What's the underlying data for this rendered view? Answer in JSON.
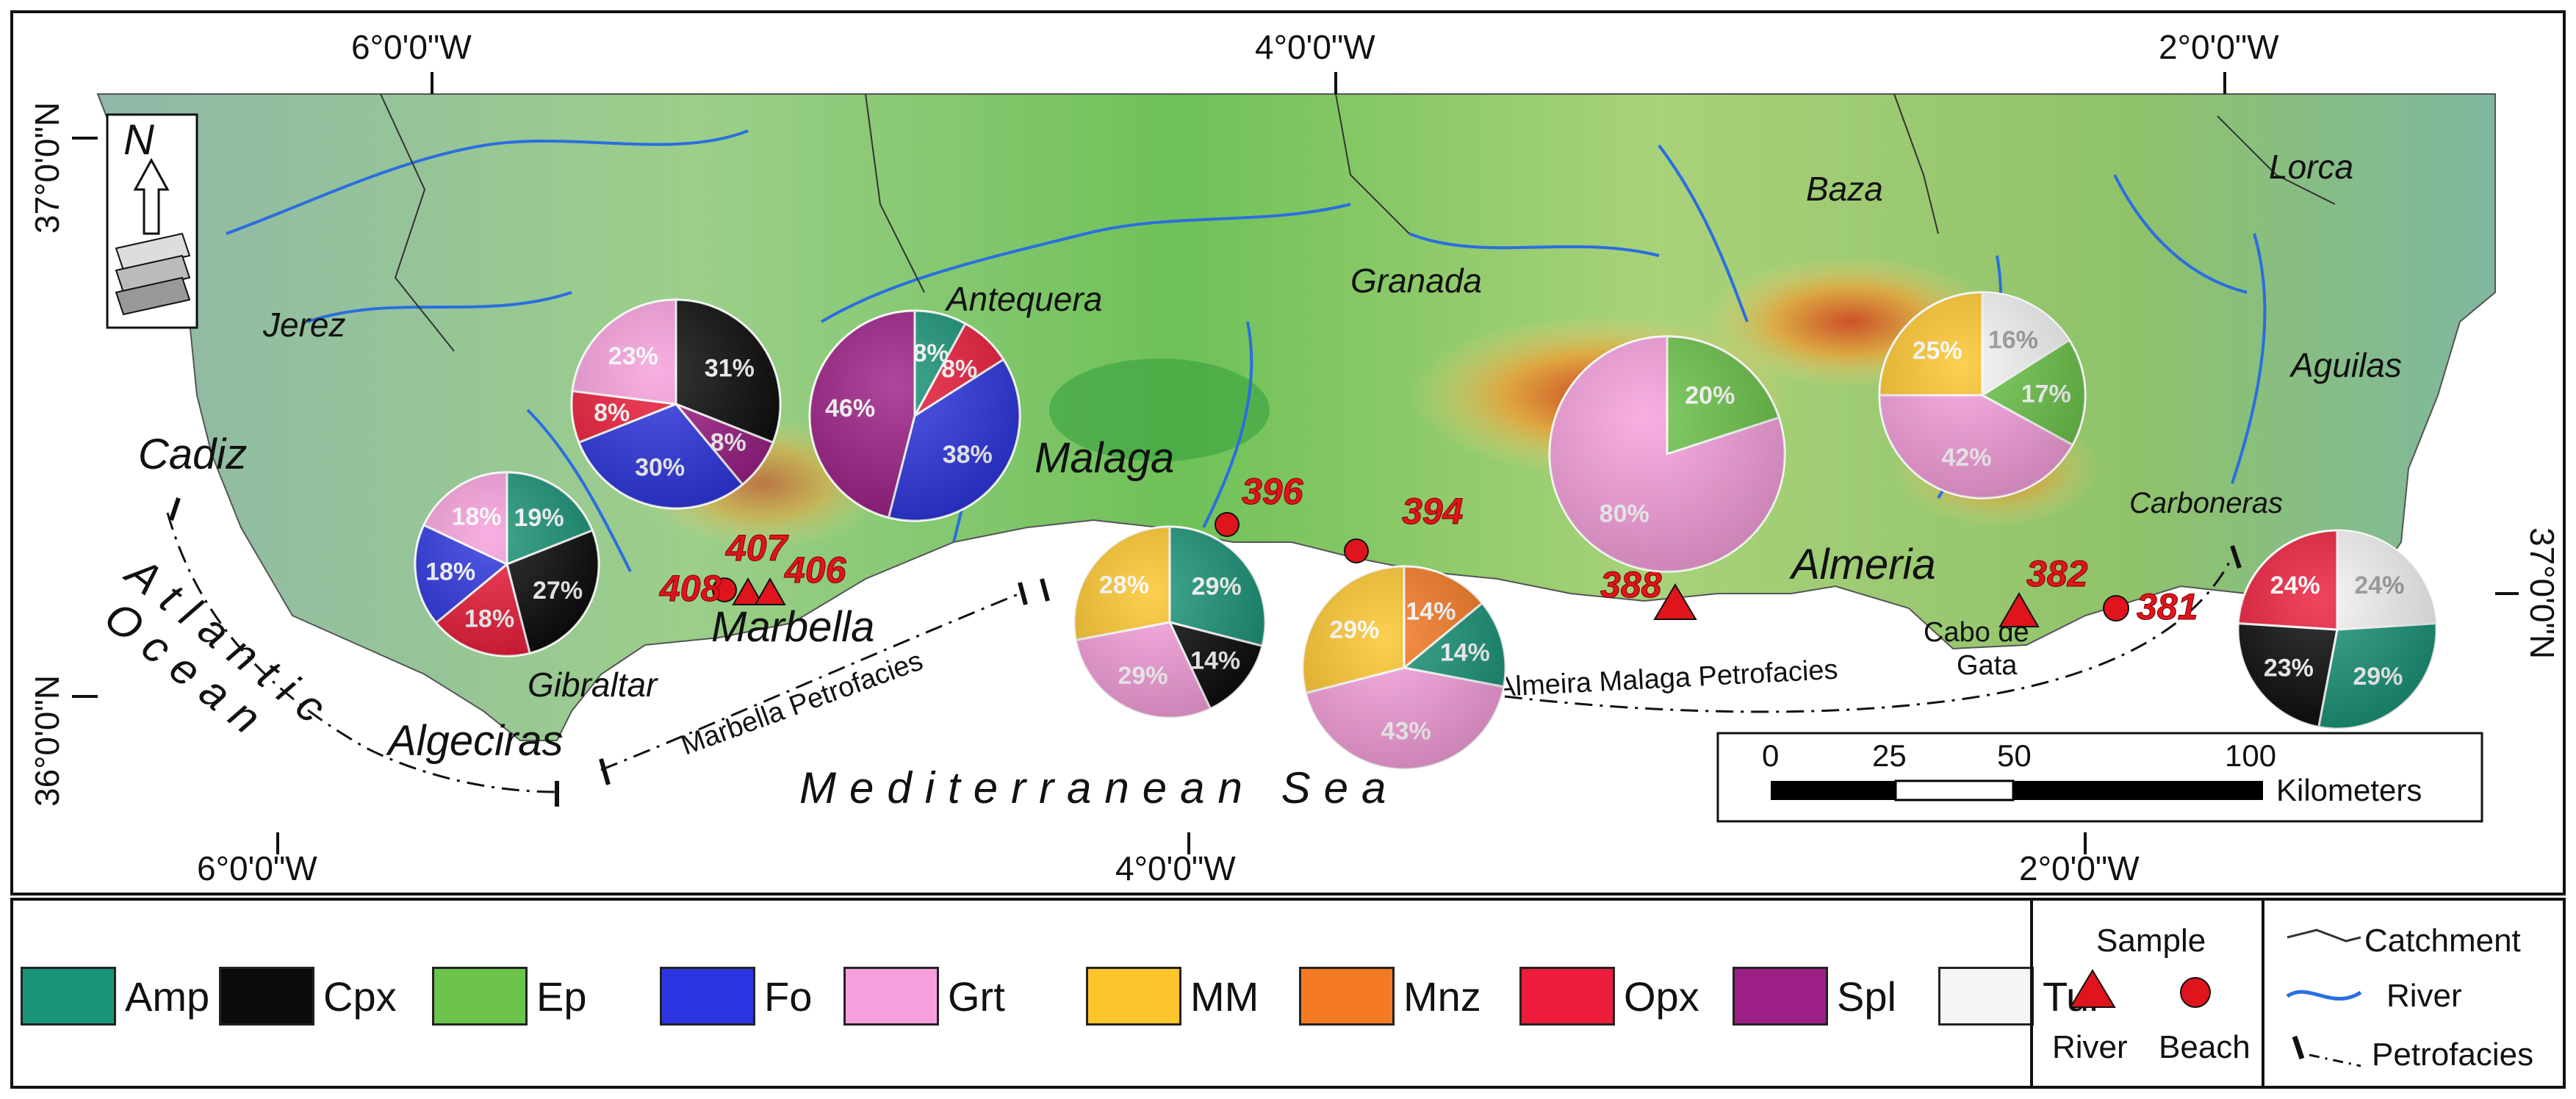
{
  "map": {
    "graticule": {
      "top_lon": [
        "6°0'0\"W",
        "4°0'0\"W",
        "2°0'0\"W"
      ],
      "bottom_lon": [
        "6°0'0\"W",
        "4°0'0\"W",
        "2°0'0\"W"
      ],
      "left_lat": [
        "37°0'0\"N",
        "36°0'0\"N"
      ],
      "right_lat": [
        "37°0'0\"N"
      ]
    },
    "places": {
      "jerez": "Jerez",
      "cadiz": "Cadiz",
      "gibraltar": "Gibraltar",
      "algeciras": "Algeciras",
      "marbella": "Marbella",
      "antequera": "Antequera",
      "malaga": "Malaga",
      "granada": "Granada",
      "baza": "Baza",
      "lorca": "Lorca",
      "aguilas": "Aguilas",
      "carboneras": "Carboneras",
      "almeria": "Almeria",
      "cabo_line1": "Cabo de",
      "cabo_line2": "Gata"
    },
    "water": {
      "atlantic": "Atlantic",
      "ocean": "Ocean",
      "mediterranean": "Mediterranean Sea"
    },
    "petrofacies": {
      "marbella": "Marbella Petrofacies",
      "almeria_malaga": "Almeira Malaga Petrofacies"
    },
    "samples": [
      {
        "id": "408",
        "kind": "beach"
      },
      {
        "id": "407",
        "kind": "river"
      },
      {
        "id": "406",
        "kind": "river"
      },
      {
        "id": "396",
        "kind": "beach"
      },
      {
        "id": "394",
        "kind": "beach"
      },
      {
        "id": "388",
        "kind": "river"
      },
      {
        "id": "382",
        "kind": "river"
      },
      {
        "id": "381",
        "kind": "beach"
      }
    ],
    "scale_bar": {
      "ticks": [
        "0",
        "25",
        "50",
        "100"
      ],
      "unit": "Kilometers"
    },
    "north_arrow": "N"
  },
  "colors": {
    "Amp": "#1a9478",
    "Cpx": "#0b0b0b",
    "Ep": "#6cc44a",
    "Fo": "#2c35e0",
    "Grt": "#f79fdd",
    "MM": "#fcc52c",
    "Mnz": "#f57a24",
    "Opx": "#ec1c3a",
    "Spl": "#9c1f86",
    "Tur": "#f5f5f5",
    "sea": "#ffffff",
    "marker": "#e0141c"
  },
  "chart_data": {
    "type": "pie",
    "pies": [
      {
        "slices": [
          {
            "mineral": "Amp",
            "value": 19,
            "label": "19%"
          },
          {
            "mineral": "Cpx",
            "value": 27,
            "label": "27%"
          },
          {
            "mineral": "Opx",
            "value": 18,
            "label": "18%"
          },
          {
            "mineral": "Fo",
            "value": 18,
            "label": "18%"
          },
          {
            "mineral": "Grt",
            "value": 18,
            "label": "18%"
          }
        ]
      },
      {
        "slices": [
          {
            "mineral": "Cpx",
            "value": 31,
            "label": "31%"
          },
          {
            "mineral": "Spl",
            "value": 8,
            "label": "8%"
          },
          {
            "mineral": "Fo",
            "value": 30,
            "label": "30%"
          },
          {
            "mineral": "Opx",
            "value": 8,
            "label": "8%"
          },
          {
            "mineral": "Grt",
            "value": 23,
            "label": "23%"
          }
        ]
      },
      {
        "slices": [
          {
            "mineral": "Amp",
            "value": 8,
            "label": "8%"
          },
          {
            "mineral": "Opx",
            "value": 8,
            "label": "8%"
          },
          {
            "mineral": "Fo",
            "value": 38,
            "label": "38%"
          },
          {
            "mineral": "Spl",
            "value": 46,
            "label": "46%"
          }
        ]
      },
      {
        "slices": [
          {
            "mineral": "Amp",
            "value": 29,
            "label": "29%"
          },
          {
            "mineral": "Cpx",
            "value": 14,
            "label": "14%"
          },
          {
            "mineral": "Grt",
            "value": 29,
            "label": "29%"
          },
          {
            "mineral": "MM",
            "value": 28,
            "label": "28%"
          }
        ]
      },
      {
        "slices": [
          {
            "mineral": "Mnz",
            "value": 14,
            "label": "14%"
          },
          {
            "mineral": "Amp",
            "value": 14,
            "label": "14%"
          },
          {
            "mineral": "Grt",
            "value": 43,
            "label": "43%"
          },
          {
            "mineral": "MM",
            "value": 29,
            "label": "29%"
          }
        ]
      },
      {
        "slices": [
          {
            "mineral": "Ep",
            "value": 20,
            "label": "20%"
          },
          {
            "mineral": "Grt",
            "value": 80,
            "label": "80%"
          }
        ]
      },
      {
        "slices": [
          {
            "mineral": "Tur",
            "value": 16,
            "label": "16%"
          },
          {
            "mineral": "Ep",
            "value": 17,
            "label": "17%"
          },
          {
            "mineral": "Grt",
            "value": 42,
            "label": "42%"
          },
          {
            "mineral": "MM",
            "value": 25,
            "label": "25%"
          }
        ]
      },
      {
        "slices": [
          {
            "mineral": "Tur",
            "value": 24,
            "label": "24%"
          },
          {
            "mineral": "Amp",
            "value": 29,
            "label": "29%"
          },
          {
            "mineral": "Cpx",
            "value": 23,
            "label": "23%"
          },
          {
            "mineral": "Opx",
            "value": 24,
            "label": "24%"
          }
        ]
      }
    ]
  },
  "legend": {
    "minerals": [
      "Amp",
      "Cpx",
      "Ep",
      "Fo",
      "Grt",
      "MM",
      "Mnz",
      "Opx",
      "Spl",
      "Tur"
    ],
    "sample_title": "Sample",
    "river_label": "River",
    "beach_label": "Beach",
    "catchment_label": "Catchment",
    "river_line_label": "River",
    "petrofacies_label": "Petrofacies"
  }
}
